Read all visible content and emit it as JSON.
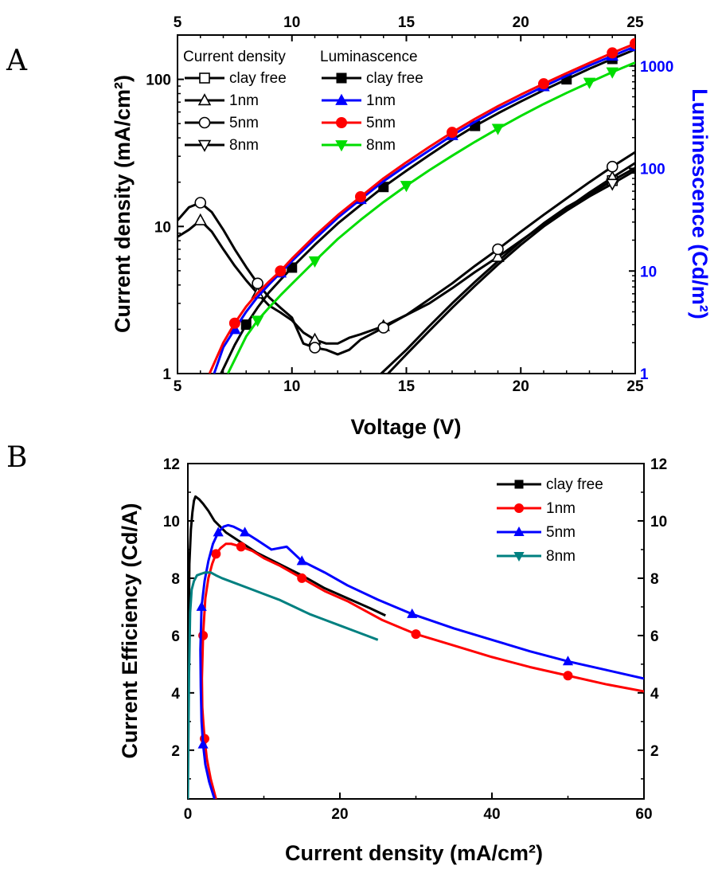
{
  "chart_data": [
    {
      "panel_label": "A",
      "type": "line",
      "xlabel": "Voltage (V)",
      "ylabel_left": "Current density (mA/cm²)",
      "ylabel_right": "Luminescence (Cd/m²)",
      "xlim": [
        5,
        25
      ],
      "ylim_left": [
        1,
        200
      ],
      "ylim_right": [
        1,
        2000
      ],
      "yscale": "log",
      "x_ticks": [
        "5",
        "10",
        "15",
        "20",
        "25"
      ],
      "y_left_ticks": [
        "1",
        "10",
        "100"
      ],
      "y_right_ticks": [
        "1",
        "10",
        "100",
        "1000"
      ],
      "right_axis_color": "#0000ff",
      "legend_position": "top-left",
      "legend_groups": [
        {
          "heading": "Current density",
          "entries": [
            {
              "label": "clay free",
              "marker": "square-open"
            },
            {
              "label": "1nm",
              "marker": "triangle-up-open"
            },
            {
              "label": "5nm",
              "marker": "circle-open"
            },
            {
              "label": "8nm",
              "marker": "triangle-down-open"
            }
          ]
        },
        {
          "heading": "Luminascence",
          "entries": [
            {
              "label": "clay free",
              "marker": "square-filled",
              "color": "#000000"
            },
            {
              "label": "1nm",
              "marker": "triangle-up-filled",
              "color": "#0000ff"
            },
            {
              "label": "5nm",
              "marker": "circle-filled",
              "color": "#ff0000"
            },
            {
              "label": "8nm",
              "marker": "triangle-down-filled",
              "color": "#00dd00"
            }
          ]
        }
      ],
      "series": [
        {
          "name": "Current density clay free",
          "axis": "left",
          "color": "#000000",
          "marker": "square-open",
          "x": [
            13.9,
            15,
            16,
            17,
            18,
            19,
            20,
            21,
            22,
            23,
            24,
            25
          ],
          "y": [
            1.0,
            1.45,
            2.1,
            3.0,
            4.2,
            5.8,
            7.9,
            10.5,
            13.5,
            16.5,
            20.5,
            25
          ]
        },
        {
          "name": "Current density 1nm",
          "axis": "left",
          "color": "#000000",
          "marker": "triangle-up-open",
          "x": [
            5,
            5.5,
            6,
            6.5,
            7,
            7.5,
            8,
            8.5,
            9,
            9.5,
            10,
            10.5,
            11,
            11.5,
            12,
            12.5,
            13,
            14,
            15,
            16,
            17,
            18,
            19,
            20,
            21,
            22,
            23,
            24,
            25
          ],
          "y": [
            8.5,
            9.5,
            11,
            9.2,
            7,
            5.4,
            4.3,
            3.5,
            2.9,
            2.6,
            2.3,
            1.9,
            1.7,
            1.6,
            1.6,
            1.75,
            1.85,
            2.1,
            2.5,
            3.0,
            3.8,
            4.9,
            6.2,
            8.0,
            10.3,
            13.2,
            17,
            21.5,
            27
          ]
        },
        {
          "name": "Current density 5nm",
          "axis": "left",
          "color": "#000000",
          "marker": "circle-open",
          "x": [
            5,
            5.5,
            6,
            6.5,
            7,
            7.5,
            8,
            8.5,
            9,
            9.5,
            10,
            10.5,
            11,
            11.5,
            12,
            12.5,
            13,
            14,
            15,
            16,
            17,
            18,
            19,
            20,
            21,
            22,
            23,
            24,
            25
          ],
          "y": [
            11,
            13.5,
            14.5,
            12.5,
            9.5,
            7,
            5.3,
            4.1,
            3.3,
            2.8,
            2.4,
            1.6,
            1.5,
            1.45,
            1.35,
            1.45,
            1.7,
            2.05,
            2.5,
            3.2,
            4.1,
            5.4,
            7.0,
            9.2,
            12.0,
            15.5,
            20,
            25.5,
            32
          ]
        },
        {
          "name": "Current density 8nm",
          "axis": "left",
          "color": "#000000",
          "marker": "triangle-down-open",
          "x": [
            14.2,
            15,
            16,
            17,
            18,
            19,
            20,
            21,
            22,
            23,
            24,
            25
          ],
          "y": [
            1.0,
            1.35,
            1.95,
            2.8,
            3.95,
            5.5,
            7.5,
            10.0,
            12.8,
            16,
            19.5,
            24
          ]
        },
        {
          "name": "Luminescence clay free",
          "axis": "right",
          "color": "#000000",
          "marker": "square-filled",
          "x": [
            6.9,
            7.5,
            8,
            8.5,
            9,
            9.5,
            10,
            11,
            12,
            13,
            14,
            15,
            16,
            17,
            18,
            19,
            20,
            21,
            22,
            23,
            24,
            25
          ],
          "y": [
            1.0,
            1.9,
            3.0,
            4.4,
            6.2,
            8.2,
            10.8,
            18,
            29,
            44,
            66,
            95,
            135,
            190,
            260,
            345,
            450,
            580,
            740,
            940,
            1170,
            1450
          ]
        },
        {
          "name": "Luminescence 1nm",
          "axis": "right",
          "color": "#0000ff",
          "marker": "triangle-up-filled",
          "x": [
            6.6,
            7,
            7.5,
            8,
            8.5,
            9,
            9.5,
            10,
            11,
            12,
            13,
            14,
            15,
            16,
            17,
            18,
            19,
            20,
            21,
            22,
            23,
            24,
            25
          ],
          "y": [
            1.0,
            1.8,
            2.7,
            4.0,
            5.6,
            7.4,
            9.6,
            12.5,
            20.5,
            33,
            50,
            75,
            107,
            150,
            210,
            285,
            380,
            490,
            630,
            800,
            1010,
            1250,
            1550
          ]
        },
        {
          "name": "Luminescence 5nm",
          "axis": "right",
          "color": "#ff0000",
          "marker": "circle-filled",
          "x": [
            6.4,
            7,
            7.5,
            8,
            8.5,
            9,
            9.5,
            10,
            11,
            12,
            13,
            14,
            15,
            16,
            17,
            18,
            19,
            20,
            21,
            22,
            23,
            24,
            25
          ],
          "y": [
            1.0,
            2.0,
            3.1,
            4.5,
            6.1,
            7.9,
            10.0,
            13.2,
            22,
            35,
            53,
            80,
            115,
            162,
            225,
            305,
            405,
            525,
            670,
            850,
            1070,
            1340,
            1650
          ]
        },
        {
          "name": "Luminescence 8nm",
          "axis": "right",
          "color": "#00dd00",
          "marker": "triangle-down-filled",
          "x": [
            7.2,
            8,
            8.5,
            9,
            9.5,
            10,
            11,
            12,
            13,
            14,
            15,
            16,
            17,
            18,
            19,
            20,
            21,
            22,
            23,
            24,
            25
          ],
          "y": [
            1.0,
            2.3,
            3.3,
            4.4,
            5.8,
            7.5,
            12.5,
            20.5,
            31.5,
            47,
            68,
            96,
            133,
            182,
            245,
            325,
            425,
            545,
            690,
            870,
            1080
          ]
        }
      ]
    },
    {
      "panel_label": "B",
      "type": "line",
      "xlabel": "Current density (mA/cm²)",
      "ylabel": "Current Efficiency (Cd/A)",
      "xlim": [
        0,
        60
      ],
      "ylim": [
        0.3,
        12
      ],
      "x_ticks": [
        "0",
        "20",
        "40",
        "60"
      ],
      "y_ticks": [
        "2",
        "4",
        "6",
        "8",
        "10",
        "12"
      ],
      "legend_position": "top-right",
      "series": [
        {
          "name": "clay free",
          "color": "#000000",
          "marker": "square-filled",
          "x": [
            0,
            0.2,
            0.4,
            0.6,
            0.8,
            1.0,
            1.5,
            2.0,
            2.7,
            3.5,
            5,
            7,
            9,
            12,
            15,
            18,
            21,
            24,
            26
          ],
          "y": [
            3,
            8.5,
            9.7,
            10.3,
            10.7,
            10.85,
            10.75,
            10.6,
            10.35,
            10.0,
            9.6,
            9.25,
            8.9,
            8.5,
            8.1,
            7.65,
            7.3,
            6.95,
            6.7
          ]
        },
        {
          "name": "1nm",
          "color": "#ff0000",
          "marker": "circle-filled",
          "x": [
            3.7,
            3.0,
            2.5,
            2.2,
            2.0,
            1.9,
            1.85,
            2.0,
            2.3,
            2.7,
            3.2,
            3.7,
            4.3,
            5.0,
            5.7,
            7,
            8.5,
            10,
            12,
            15,
            18,
            21,
            25.5,
            30,
            35,
            40,
            45,
            50,
            55,
            60
          ],
          "y": [
            0.3,
            1.0,
            1.7,
            2.4,
            3.1,
            3.5,
            4.5,
            6.0,
            7.3,
            8.0,
            8.5,
            8.85,
            9.05,
            9.2,
            9.2,
            9.1,
            8.95,
            8.7,
            8.45,
            8.0,
            7.55,
            7.2,
            6.55,
            6.05,
            5.65,
            5.25,
            4.9,
            4.6,
            4.3,
            4.05
          ]
        },
        {
          "name": "5nm",
          "color": "#0000ff",
          "marker": "triangle-up-filled",
          "x": [
            3.5,
            2.8,
            2.3,
            2.0,
            1.8,
            1.7,
            1.65,
            1.8,
            2.2,
            2.7,
            3.3,
            4.0,
            4.7,
            5.3,
            6,
            7.5,
            9,
            11,
            13,
            15,
            18,
            21,
            25,
            29.5,
            35,
            40,
            45,
            50,
            55,
            60
          ],
          "y": [
            0.3,
            0.9,
            1.5,
            2.2,
            3.0,
            4.2,
            5.5,
            7.0,
            7.9,
            8.6,
            9.2,
            9.6,
            9.8,
            9.85,
            9.8,
            9.6,
            9.35,
            9.0,
            9.1,
            8.6,
            8.2,
            7.75,
            7.25,
            6.75,
            6.25,
            5.85,
            5.45,
            5.1,
            4.8,
            4.5
          ]
        },
        {
          "name": "8nm",
          "color": "#008080",
          "marker": "triangle-down-filled",
          "x": [
            0,
            0.15,
            0.3,
            0.5,
            0.8,
            1.2,
            1.7,
            2.3,
            3.0,
            3.7,
            4.5,
            6,
            8,
            10,
            12,
            14,
            16,
            18,
            20,
            22,
            23.5,
            25
          ],
          "y": [
            0.3,
            4.6,
            6.8,
            7.6,
            7.9,
            8.1,
            8.15,
            8.2,
            8.2,
            8.1,
            8.0,
            7.85,
            7.65,
            7.45,
            7.25,
            7.0,
            6.75,
            6.55,
            6.35,
            6.15,
            6.0,
            5.85
          ]
        }
      ]
    }
  ]
}
